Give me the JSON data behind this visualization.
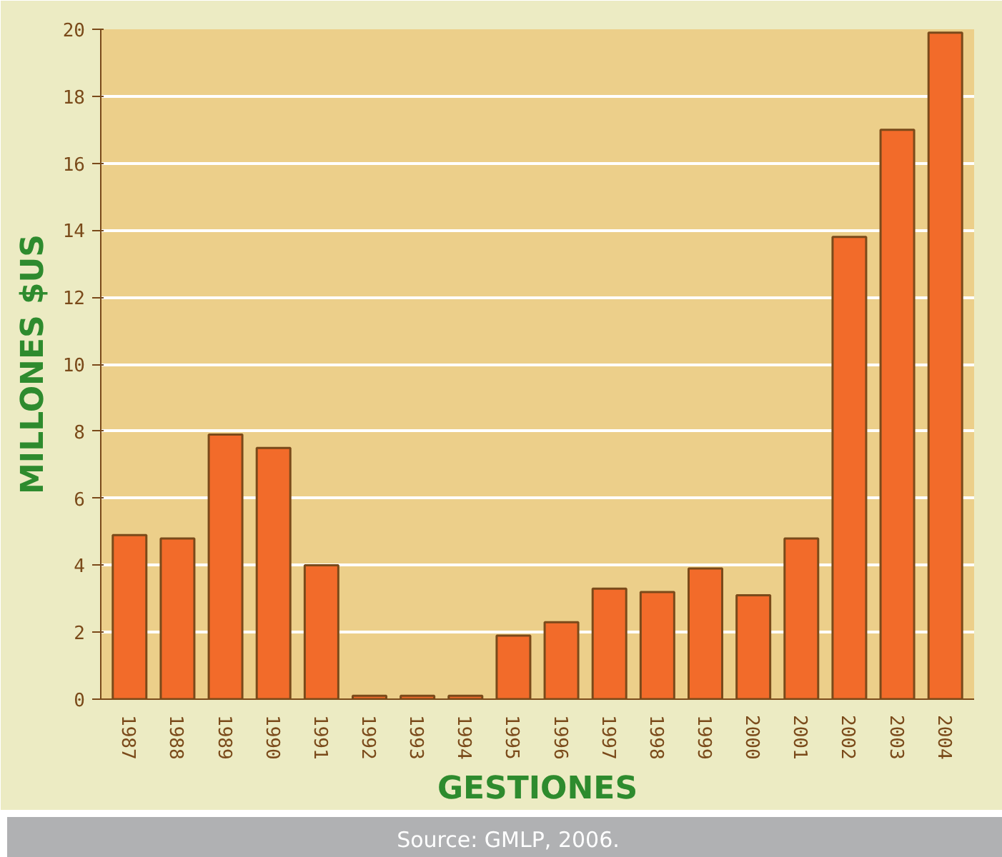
{
  "chart_data": {
    "type": "bar",
    "xlabel": "GESTIONES",
    "ylabel": "MILLONES $US",
    "categories": [
      "1987",
      "1988",
      "1989",
      "1990",
      "1991",
      "1992",
      "1993",
      "1994",
      "1995",
      "1996",
      "1997",
      "1998",
      "1999",
      "2000",
      "2001",
      "2002",
      "2003",
      "2004"
    ],
    "values": [
      4.9,
      4.8,
      7.9,
      7.5,
      4.0,
      0.1,
      0.1,
      0.1,
      1.9,
      2.3,
      3.3,
      3.2,
      3.9,
      3.1,
      4.8,
      13.8,
      17.0,
      19.9
    ],
    "color": "#f26b2a",
    "ylim": [
      0,
      20
    ],
    "yticks": [
      0,
      2,
      4,
      6,
      8,
      10,
      12,
      14,
      16,
      18,
      20
    ],
    "grid": "y",
    "annotations": [
      "Source: GMLP, 2006."
    ]
  }
}
